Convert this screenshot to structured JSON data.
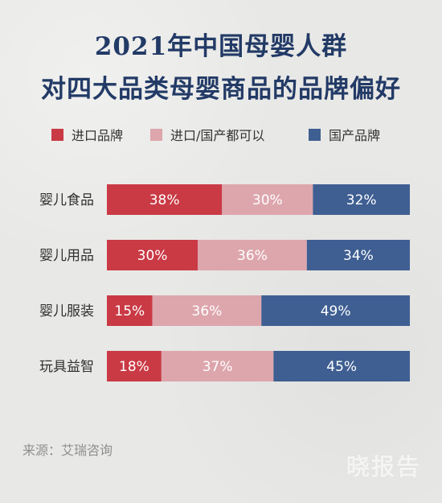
{
  "chart_data": {
    "type": "bar",
    "title": "2021年中国母婴人群",
    "subtitle": "对四大品类母婴商品的品牌偏好",
    "categories": [
      "婴儿食品",
      "婴儿用品",
      "婴儿服装",
      "玩具益智"
    ],
    "series": [
      {
        "name": "进口品牌",
        "values": [
          38,
          30,
          15,
          18
        ],
        "color": "#c93a45",
        "labels": [
          "38%",
          "30%",
          "15%",
          "18%"
        ]
      },
      {
        "name": "进口/国产都可以",
        "values": [
          30,
          36,
          36,
          37
        ],
        "color": "#dda6ad",
        "labels": [
          "30%",
          "36%",
          "36%",
          "37%"
        ]
      },
      {
        "name": "国产品牌",
        "values": [
          32,
          34,
          49,
          45
        ],
        "color": "#3f5f92",
        "labels": [
          "32%",
          "34%",
          "49%",
          "45%"
        ]
      }
    ],
    "stacked": true,
    "orientation": "horizontal",
    "xlim": [
      0,
      100
    ],
    "grid": false,
    "legend_position": "top"
  },
  "source": "来源：艾瑞咨询",
  "watermark": "晓报告"
}
